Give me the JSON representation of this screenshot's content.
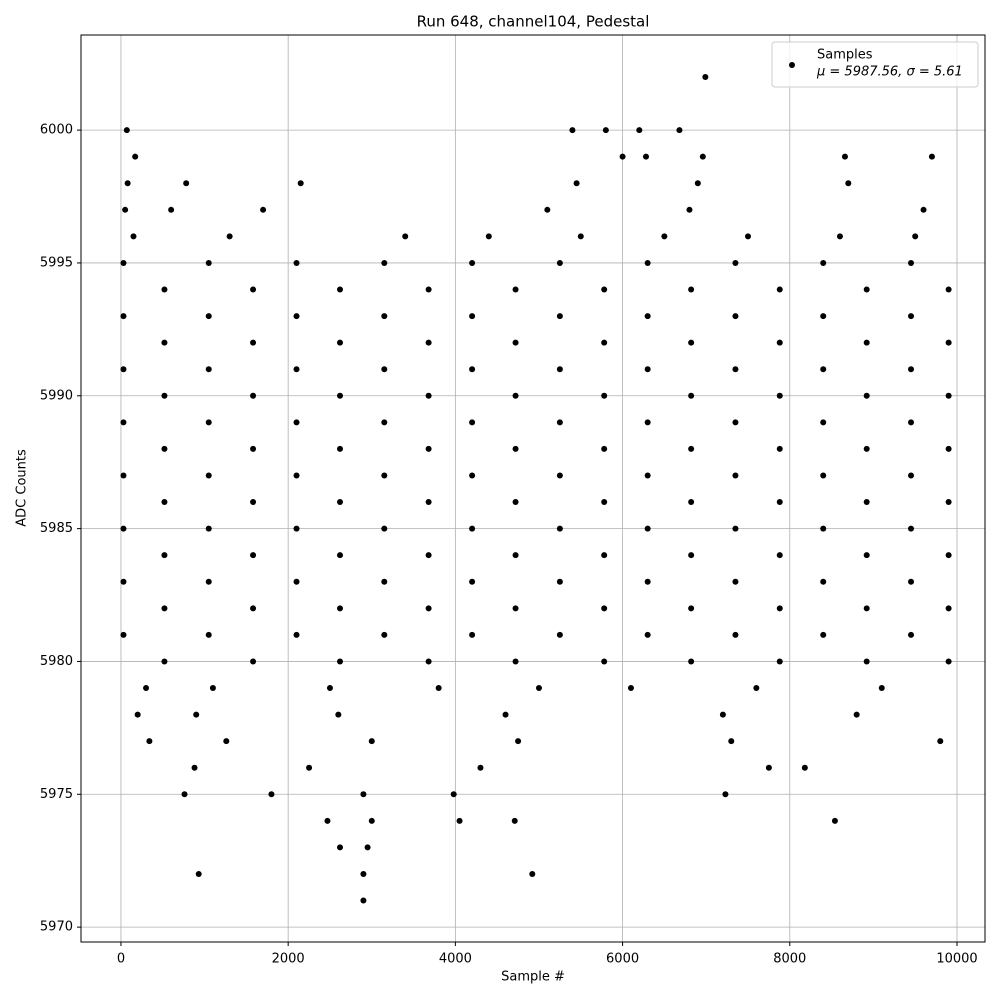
{
  "chart_data": {
    "type": "scatter",
    "title": "Run 648, channel104, Pedestal",
    "xlabel": "Sample #",
    "ylabel": "ADC Counts",
    "xlim": [
      -478,
      10335
    ],
    "ylim": [
      5969.44,
      6003.58
    ],
    "xticks": [
      0,
      2000,
      4000,
      6000,
      8000,
      10000
    ],
    "yticks": [
      5970,
      5975,
      5980,
      5985,
      5990,
      5995,
      6000
    ],
    "grid": true,
    "legend": "upper right",
    "stats": "μ = 5987.56, σ = 5.61",
    "x": [
      30,
      1050,
      2100,
      3150,
      4200,
      5250,
      6300,
      7350,
      8400,
      9450,
      520,
      1580,
      2620,
      3680,
      4720,
      5780,
      6820,
      7880,
      8920,
      9900,
      30,
      1050,
      2100,
      3150,
      4200,
      5250,
      6300,
      7350,
      8400,
      9450,
      520,
      1580,
      2620,
      3680,
      4720,
      5780,
      6820,
      7880,
      8920,
      9900,
      30,
      1050,
      2100,
      3150,
      4200,
      5250,
      6300,
      7350,
      8400,
      9450,
      520,
      1580,
      2620,
      3680,
      4720,
      5780,
      6820,
      7880,
      8920,
      9900,
      30,
      1050,
      2100,
      3150,
      4200,
      5250,
      6300,
      7350,
      8400,
      9450,
      520,
      1580,
      2620,
      3680,
      4720,
      5780,
      6820,
      7880,
      8920,
      9900,
      30,
      1050,
      2100,
      3150,
      4200,
      5250,
      6300,
      7350,
      8400,
      9450,
      520,
      1580,
      2620,
      3680,
      4720,
      5780,
      6820,
      7880,
      8920,
      9900,
      30,
      1050,
      2100,
      3150,
      4200,
      5250,
      6300,
      7350,
      8400,
      9450,
      520,
      1580,
      2620,
      3680,
      4720,
      5780,
      6820,
      7880,
      8920,
      9900,
      30,
      1050,
      2100,
      3150,
      4200,
      5250,
      6300,
      7350,
      8400,
      9450,
      520,
      1580,
      2620,
      3680,
      4720,
      5780,
      6820,
      7880,
      8920,
      9900,
      30,
      1050,
      2100,
      3150,
      4200,
      5250,
      6300,
      7350,
      8400,
      9450,
      520,
      1580,
      2620,
      3680,
      4720,
      5780,
      6820,
      7880,
      8920,
      9900,
      150,
      1300,
      3400,
      4400,
      5500,
      6500,
      7500,
      8600,
      9500,
      50,
      600,
      1700,
      5100,
      6800,
      9600,
      80,
      780,
      2150,
      5450,
      6900,
      8700,
      300,
      1100,
      2500,
      3800,
      5000,
      6100,
      7600,
      9100,
      200,
      900,
      2600,
      4600,
      7200,
      8800,
      340,
      1260,
      3000,
      4750,
      7300,
      9800,
      880,
      2250,
      4300,
      7750,
      8180,
      760,
      1800,
      2900,
      3980,
      7230,
      2470,
      3000,
      4050,
      4710,
      8540,
      2620,
      2950,
      930,
      2900,
      4920,
      2900,
      170,
      6000,
      6280,
      6960,
      8660,
      9700,
      70,
      5400,
      5800,
      6200,
      6680,
      6990
    ],
    "series": [
      {
        "name": "Samples",
        "color": "#000000",
        "values": [
          5995,
          5995,
          5995,
          5995,
          5995,
          5995,
          5995,
          5995,
          5995,
          5995,
          5994,
          5994,
          5994,
          5994,
          5994,
          5994,
          5994,
          5994,
          5994,
          5994,
          5993,
          5993,
          5993,
          5993,
          5993,
          5993,
          5993,
          5993,
          5993,
          5993,
          5992,
          5992,
          5992,
          5992,
          5992,
          5992,
          5992,
          5992,
          5992,
          5992,
          5991,
          5991,
          5991,
          5991,
          5991,
          5991,
          5991,
          5991,
          5991,
          5991,
          5990,
          5990,
          5990,
          5990,
          5990,
          5990,
          5990,
          5990,
          5990,
          5990,
          5989,
          5989,
          5989,
          5989,
          5989,
          5989,
          5989,
          5989,
          5989,
          5989,
          5988,
          5988,
          5988,
          5988,
          5988,
          5988,
          5988,
          5988,
          5988,
          5988,
          5987,
          5987,
          5987,
          5987,
          5987,
          5987,
          5987,
          5987,
          5987,
          5987,
          5986,
          5986,
          5986,
          5986,
          5986,
          5986,
          5986,
          5986,
          5986,
          5986,
          5985,
          5985,
          5985,
          5985,
          5985,
          5985,
          5985,
          5985,
          5985,
          5985,
          5984,
          5984,
          5984,
          5984,
          5984,
          5984,
          5984,
          5984,
          5984,
          5984,
          5983,
          5983,
          5983,
          5983,
          5983,
          5983,
          5983,
          5983,
          5983,
          5983,
          5982,
          5982,
          5982,
          5982,
          5982,
          5982,
          5982,
          5982,
          5982,
          5982,
          5981,
          5981,
          5981,
          5981,
          5981,
          5981,
          5981,
          5981,
          5981,
          5981,
          5980,
          5980,
          5980,
          5980,
          5980,
          5980,
          5980,
          5980,
          5980,
          5980,
          5996,
          5996,
          5996,
          5996,
          5996,
          5996,
          5996,
          5996,
          5996,
          5997,
          5997,
          5997,
          5997,
          5997,
          5997,
          5998,
          5998,
          5998,
          5998,
          5998,
          5998,
          5979,
          5979,
          5979,
          5979,
          5979,
          5979,
          5979,
          5979,
          5978,
          5978,
          5978,
          5978,
          5978,
          5978,
          5977,
          5977,
          5977,
          5977,
          5977,
          5977,
          5976,
          5976,
          5976,
          5976,
          5976,
          5975,
          5975,
          5975,
          5975,
          5975,
          5974,
          5974,
          5974,
          5974,
          5974,
          5973,
          5973,
          5972,
          5972,
          5972,
          5971,
          5999,
          5999,
          5999,
          5999,
          5999,
          5999,
          6000,
          6000,
          6000,
          6000,
          6000,
          6002
        ]
      }
    ]
  }
}
